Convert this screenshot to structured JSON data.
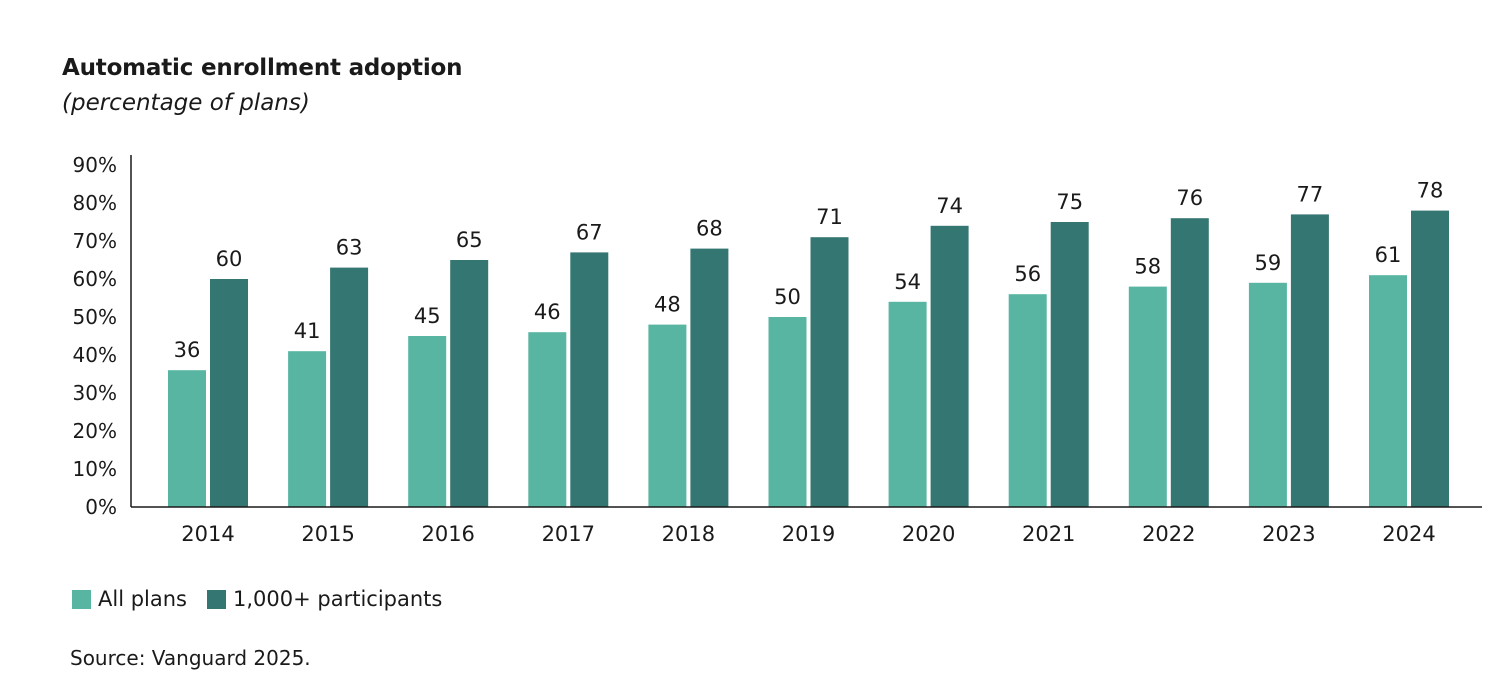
{
  "colors": {
    "all_plans": "#57b5a1",
    "large_plans": "#347672",
    "axis": "#1a1a1a"
  },
  "chart_data": {
    "type": "bar",
    "title": "Automatic enrollment adoption",
    "subtitle": "(percentage of plans)",
    "categories": [
      "2014",
      "2015",
      "2016",
      "2017",
      "2018",
      "2019",
      "2020",
      "2021",
      "2022",
      "2023",
      "2024"
    ],
    "series": [
      {
        "name": "All plans",
        "values": [
          36,
          41,
          45,
          46,
          48,
          50,
          54,
          56,
          58,
          59,
          61
        ]
      },
      {
        "name": "1,000+ participants",
        "values": [
          60,
          63,
          65,
          67,
          68,
          71,
          74,
          75,
          76,
          77,
          78
        ]
      }
    ],
    "yticks": [
      "0%",
      "10%",
      "20%",
      "30%",
      "40%",
      "50%",
      "60%",
      "70%",
      "80%",
      "90%"
    ],
    "ylim": [
      0,
      90
    ],
    "grid": false,
    "legend_position": "bottom-left",
    "data_labels": true
  },
  "source": "Source: Vanguard 2025."
}
